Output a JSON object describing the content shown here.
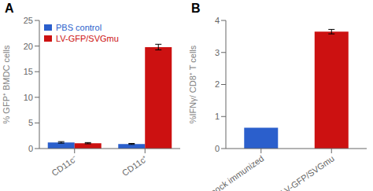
{
  "chart_data": [
    {
      "type": "bar",
      "title": "A",
      "categories": [
        "CD11c⁻",
        "CD11c⁺"
      ],
      "series": [
        {
          "name": "PBS control",
          "color": "#2B5FCC",
          "values": [
            1.2,
            0.9
          ],
          "errors": [
            0.15,
            0.1
          ]
        },
        {
          "name": "LV-GFP/SVGmu",
          "color": "#CC1111",
          "values": [
            1.05,
            19.8
          ],
          "errors": [
            0.12,
            0.55
          ]
        }
      ],
      "ylabel": "% GFP⁺ BMDC cells",
      "ylim": [
        0,
        25
      ],
      "yticks": [
        0,
        5,
        10,
        15,
        20,
        25
      ],
      "legend": "upper left",
      "grid": false
    },
    {
      "type": "bar",
      "title": "B",
      "categories": [
        "mock immunized",
        "LV-GFP/SVGmu"
      ],
      "values": [
        0.65,
        3.65
      ],
      "errors": [
        0.0,
        0.07
      ],
      "colors": [
        "#2B5FCC",
        "#CC1111"
      ],
      "ylabel": "%IFNγ/ CD8⁺ T cells",
      "ylim": [
        0,
        4
      ],
      "yticks": [
        0,
        1,
        2,
        3,
        4
      ],
      "grid": false
    }
  ]
}
